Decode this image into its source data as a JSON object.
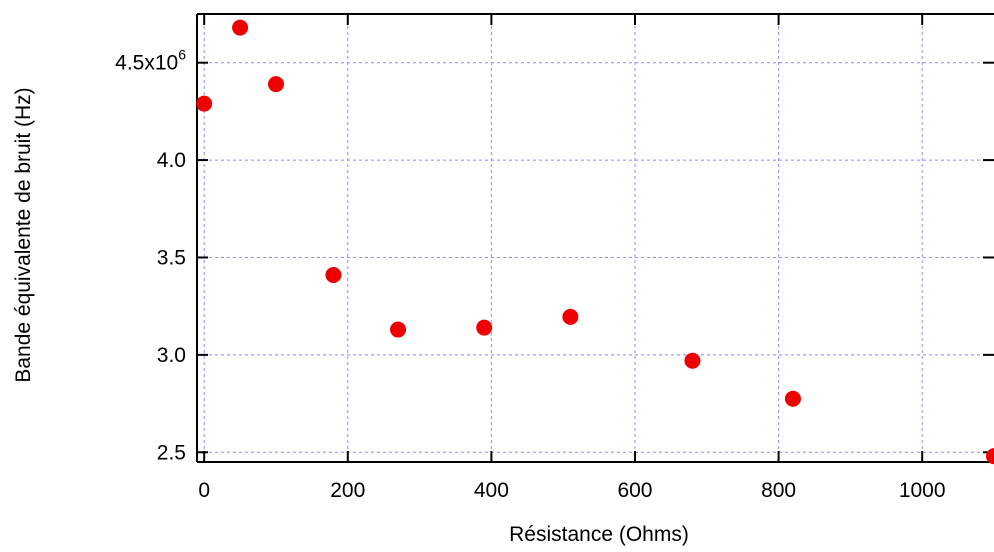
{
  "chart_data": {
    "type": "scatter",
    "xlabel": "Résistance (Ohms)",
    "ylabel": "Bande équivalente de bruit (Hz)",
    "xlim": [
      -10,
      1100
    ],
    "ylim": [
      2.45,
      4.75
    ],
    "y_multiplier_label": {
      "base": "x10",
      "exponent": "6"
    },
    "x_ticks": [
      0,
      200,
      400,
      600,
      800,
      1000
    ],
    "x_tick_labels": [
      "0",
      "200",
      "400",
      "600",
      "800",
      "1000"
    ],
    "y_ticks": [
      2.5,
      3.0,
      3.5,
      4.0,
      4.5
    ],
    "y_tick_labels": [
      "2.5",
      "3.0",
      "3.5",
      "4.0",
      "4.5"
    ],
    "grid": true,
    "marker_color": "#ee0000",
    "grid_color": "#8b8bff",
    "series": [
      {
        "x": [
          0,
          50,
          100,
          180,
          270,
          390,
          510,
          680,
          820,
          1100
        ],
        "y": [
          4.29,
          4.68,
          4.39,
          3.41,
          3.13,
          3.14,
          3.195,
          2.97,
          2.775,
          2.48
        ]
      }
    ]
  }
}
